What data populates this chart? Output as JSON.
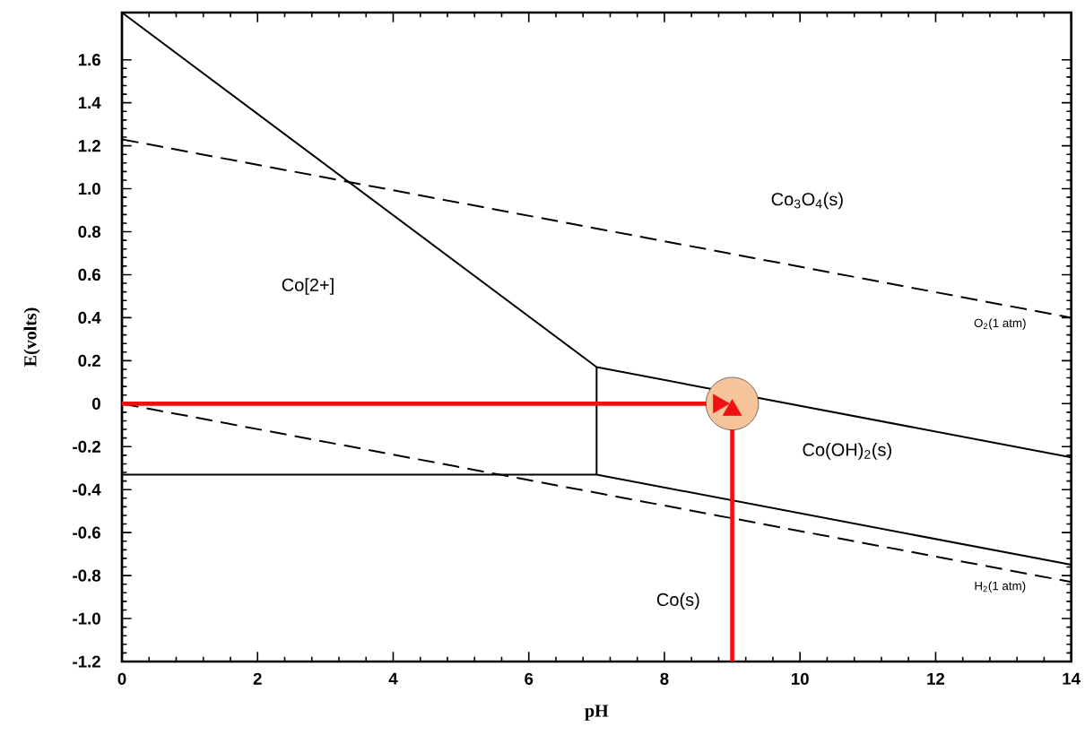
{
  "chart_data": {
    "type": "line",
    "xlabel": "pH",
    "ylabel": "E(volts)",
    "xlim": [
      0,
      14
    ],
    "ylim": [
      -1.2,
      1.82
    ],
    "xticks": [
      0,
      2,
      4,
      6,
      8,
      10,
      12,
      14
    ],
    "yticks": [
      {
        "value": -1.2,
        "label": "-1.2"
      },
      {
        "value": -1,
        "label": "-1.0"
      },
      {
        "value": -0.8,
        "label": "-0.8"
      },
      {
        "value": -0.6,
        "label": "-0.6"
      },
      {
        "value": -0.4,
        "label": "-0.4"
      },
      {
        "value": -0.2,
        "label": "-0.2"
      },
      0,
      {
        "value": 0.2,
        "label": "0.2"
      },
      {
        "value": 0.4,
        "label": "0.4"
      },
      {
        "value": 0.6,
        "label": "0.6"
      },
      {
        "value": 0.8,
        "label": "0.8"
      },
      {
        "value": 1,
        "label": "1.0"
      },
      {
        "value": 1.2,
        "label": "1.2"
      },
      {
        "value": 1.4,
        "label": "1.4"
      },
      {
        "value": 1.6,
        "label": "1.6"
      }
    ],
    "grid": false,
    "marker": "none",
    "line_style": "solid",
    "series": [
      {
        "type": "scatter",
        "color": "#f5c49a",
        "marker": "circle",
        "x": [
          9
        ],
        "values": [
          0
        ]
      },
      {
        "color": "#000000",
        "x": [
          0,
          7,
          14
        ],
        "values": [
          1.82,
          0.17,
          -0.25
        ]
      },
      {
        "color": "#000000",
        "x": [
          0,
          7,
          14
        ],
        "values": [
          -0.33,
          -0.33,
          -0.75
        ]
      },
      {
        "color": "#000000",
        "x": [
          7,
          7
        ],
        "values": [
          -0.33,
          0.17
        ]
      },
      {
        "color": "#000000",
        "line_style": "dashed",
        "x": [
          0,
          14
        ],
        "values": [
          1.23,
          0.4
        ]
      },
      {
        "color": "#000000",
        "line_style": "dashed",
        "x": [
          0,
          14
        ],
        "values": [
          0,
          -0.83
        ]
      },
      {
        "color": "#ee1111",
        "marker": "triangle",
        "x": [
          0,
          8.8
        ],
        "values": [
          0,
          0
        ]
      },
      {
        "color": "#ee1111",
        "marker": "triangle",
        "x": [
          9,
          9
        ],
        "values": [
          -1.2,
          -0.03
        ]
      }
    ],
    "annotations": [
      "Co[2+]",
      "Co$_{3}$O$_{4}$(s)",
      "Co(OH)$_{2}$(s)",
      "Co(s)",
      "O$_{2}$(1 atm)",
      "H$_{2}$(1 atm)"
    ]
  }
}
